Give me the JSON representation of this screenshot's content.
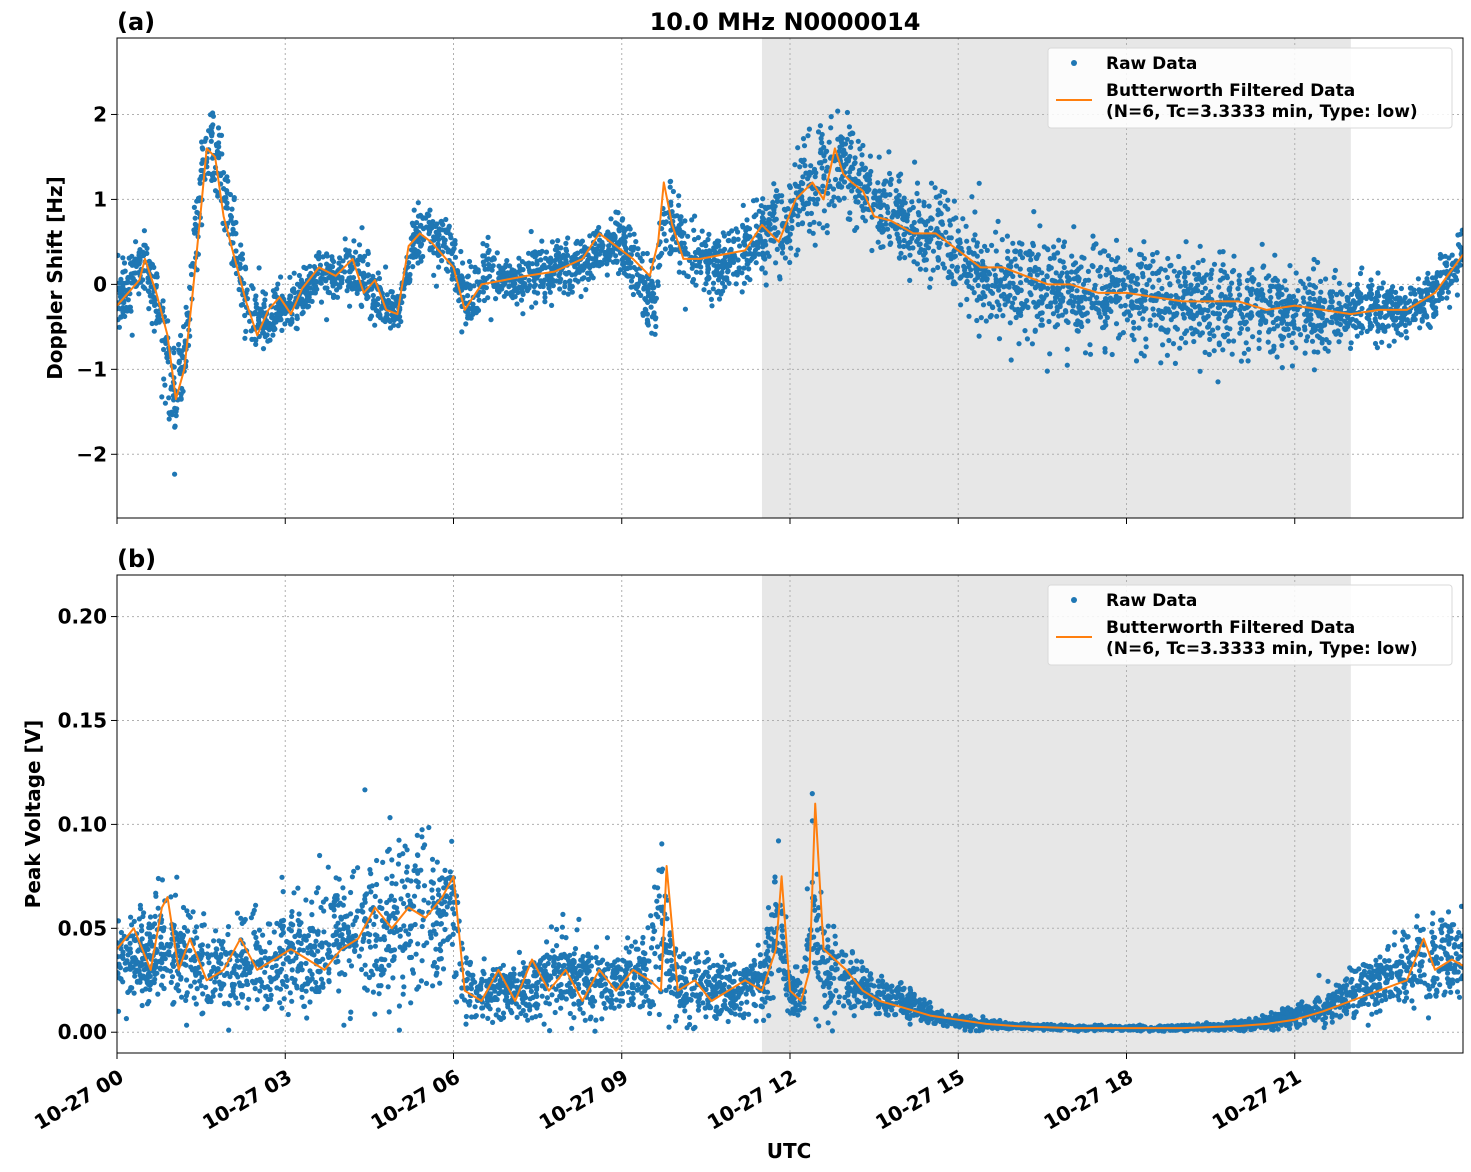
{
  "chart_data": [
    {
      "type": "scatter",
      "panel_label": "(a)",
      "title": "10.0 MHz N0000014",
      "ylabel": "Doppler Shift [Hz]",
      "xlabel": "",
      "xlim": [
        0,
        24
      ],
      "ylim": [
        -2.75,
        2.9
      ],
      "yticks": [
        -2,
        -1,
        0,
        1,
        2
      ],
      "ytick_labels": [
        "−2",
        "−1",
        "0",
        "1",
        "2"
      ],
      "xticks": [
        0,
        3,
        6,
        9,
        12,
        15,
        18,
        21
      ],
      "grid": true,
      "shaded_region": [
        11.5,
        22.0
      ],
      "legend": {
        "placement": "top-right",
        "entries": [
          "Raw Data",
          "Butterworth Filtered Data",
          "(N=6, Tc=3.3333 min, Type: low)"
        ]
      },
      "series": [
        {
          "name": "Raw Data",
          "style": "points",
          "color": "#1f77b4",
          "x": [
            0.0,
            0.5,
            0.7,
            0.9,
            1.05,
            1.3,
            1.5,
            1.75,
            2.0,
            2.3,
            2.6,
            2.9,
            3.2,
            3.6,
            4.0,
            4.3,
            4.6,
            5.0,
            5.3,
            5.6,
            5.9,
            6.2,
            6.6,
            7.0,
            7.5,
            8.0,
            8.5,
            9.0,
            9.35,
            9.6,
            9.8,
            10.2,
            10.6,
            11.0,
            11.5,
            11.9,
            12.3,
            12.6,
            12.9,
            13.2,
            13.6,
            14.0,
            14.5,
            15.0,
            15.5,
            16.0,
            16.5,
            17.0,
            17.5,
            18.0,
            18.5,
            19.0,
            19.5,
            20.0,
            20.5,
            21.0,
            21.5,
            22.0,
            22.5,
            23.0,
            23.5,
            24.0
          ],
          "y": [
            -0.2,
            0.3,
            -0.2,
            -0.9,
            -1.4,
            -0.3,
            1.2,
            1.7,
            0.8,
            -0.2,
            -0.5,
            -0.3,
            -0.2,
            0.1,
            0.1,
            0.25,
            -0.2,
            -0.3,
            0.5,
            0.6,
            0.4,
            -0.2,
            0.1,
            0.0,
            0.1,
            0.2,
            0.3,
            0.5,
            0.0,
            -0.2,
            0.8,
            0.3,
            0.2,
            0.3,
            0.6,
            0.7,
            1.1,
            1.3,
            1.4,
            1.2,
            0.9,
            0.7,
            0.6,
            0.4,
            0.1,
            0.0,
            0.0,
            -0.1,
            -0.1,
            -0.15,
            -0.2,
            -0.2,
            -0.25,
            -0.25,
            -0.3,
            -0.3,
            -0.3,
            -0.35,
            -0.3,
            -0.3,
            -0.1,
            0.3
          ],
          "spread": [
            0.35,
            0.35,
            0.35,
            0.5,
            0.6,
            0.45,
            0.55,
            0.55,
            0.4,
            0.45,
            0.35,
            0.3,
            0.3,
            0.3,
            0.3,
            0.3,
            0.3,
            0.3,
            0.3,
            0.3,
            0.3,
            0.35,
            0.35,
            0.3,
            0.3,
            0.3,
            0.3,
            0.3,
            0.35,
            0.4,
            0.45,
            0.4,
            0.35,
            0.35,
            0.4,
            0.45,
            0.5,
            0.55,
            0.55,
            0.5,
            0.45,
            0.4,
            0.4,
            0.45,
            0.5,
            0.55,
            0.55,
            0.55,
            0.55,
            0.55,
            0.55,
            0.55,
            0.55,
            0.5,
            0.5,
            0.45,
            0.4,
            0.35,
            0.3,
            0.3,
            0.3,
            0.3
          ]
        },
        {
          "name": "Butterworth Filtered Data",
          "style": "line",
          "color": "#ff7f0e",
          "x": [
            0.0,
            0.4,
            0.5,
            0.7,
            0.9,
            1.05,
            1.2,
            1.35,
            1.5,
            1.6,
            1.75,
            1.9,
            2.1,
            2.3,
            2.5,
            2.7,
            2.9,
            3.1,
            3.3,
            3.6,
            3.9,
            4.2,
            4.4,
            4.6,
            4.8,
            5.0,
            5.2,
            5.4,
            5.6,
            5.8,
            6.0,
            6.2,
            6.5,
            6.9,
            7.3,
            7.8,
            8.3,
            8.6,
            8.9,
            9.2,
            9.5,
            9.65,
            9.75,
            9.9,
            10.1,
            10.4,
            10.8,
            11.2,
            11.5,
            11.8,
            12.1,
            12.4,
            12.6,
            12.8,
            12.95,
            13.1,
            13.3,
            13.5,
            13.8,
            14.2,
            14.6,
            15.0,
            15.4,
            15.8,
            16.2,
            16.6,
            17.0,
            17.5,
            18.0,
            18.5,
            19.0,
            19.5,
            20.0,
            20.5,
            21.0,
            21.5,
            22.0,
            22.5,
            23.0,
            23.5,
            24.0
          ],
          "y": [
            -0.25,
            0.05,
            0.3,
            -0.1,
            -0.6,
            -1.35,
            -1.0,
            -0.1,
            0.9,
            1.6,
            1.5,
            0.8,
            0.3,
            -0.2,
            -0.6,
            -0.3,
            -0.15,
            -0.35,
            -0.05,
            0.2,
            0.1,
            0.3,
            -0.1,
            0.05,
            -0.3,
            -0.35,
            0.45,
            0.6,
            0.5,
            0.35,
            0.2,
            -0.3,
            0.0,
            0.05,
            0.1,
            0.15,
            0.3,
            0.6,
            0.45,
            0.3,
            0.1,
            0.5,
            1.2,
            0.7,
            0.3,
            0.3,
            0.35,
            0.4,
            0.7,
            0.5,
            1.0,
            1.2,
            1.0,
            1.6,
            1.3,
            1.2,
            1.1,
            0.8,
            0.75,
            0.6,
            0.6,
            0.4,
            0.2,
            0.2,
            0.1,
            0.0,
            0.0,
            -0.1,
            -0.1,
            -0.15,
            -0.2,
            -0.2,
            -0.2,
            -0.3,
            -0.25,
            -0.3,
            -0.35,
            -0.3,
            -0.3,
            -0.1,
            0.35
          ]
        }
      ]
    },
    {
      "type": "scatter",
      "panel_label": "(b)",
      "title": "",
      "ylabel": "Peak Voltage [V]",
      "xlabel": "UTC",
      "xlim": [
        0,
        24
      ],
      "ylim": [
        -0.01,
        0.22
      ],
      "yticks": [
        0.0,
        0.05,
        0.1,
        0.15,
        0.2
      ],
      "ytick_labels": [
        "0.00",
        "0.05",
        "0.10",
        "0.15",
        "0.20"
      ],
      "xticks": [
        0,
        3,
        6,
        9,
        12,
        15,
        18,
        21
      ],
      "xtick_labels": [
        "10-27 00",
        "10-27 03",
        "10-27 06",
        "10-27 09",
        "10-27 12",
        "10-27 15",
        "10-27 18",
        "10-27 21"
      ],
      "grid": true,
      "shaded_region": [
        11.5,
        22.0
      ],
      "legend": {
        "placement": "top-right",
        "entries": [
          "Raw Data",
          "Butterworth Filtered Data",
          "(N=6, Tc=3.3333 min, Type: low)"
        ]
      },
      "series": [
        {
          "name": "Raw Data",
          "style": "points",
          "color": "#1f77b4",
          "x": [
            0.0,
            0.5,
            1.0,
            1.5,
            2.0,
            2.5,
            3.0,
            3.5,
            4.0,
            4.5,
            5.0,
            5.5,
            6.0,
            6.2,
            6.6,
            7.0,
            7.5,
            8.0,
            8.5,
            9.0,
            9.5,
            9.7,
            10.0,
            10.5,
            11.0,
            11.5,
            11.8,
            12.0,
            12.2,
            12.4,
            12.6,
            13.0,
            13.5,
            14.0,
            14.5,
            15.0,
            16.0,
            17.0,
            18.0,
            19.0,
            20.0,
            20.5,
            21.0,
            21.5,
            22.0,
            22.5,
            23.0,
            23.5,
            24.0
          ],
          "y": [
            0.035,
            0.035,
            0.04,
            0.03,
            0.028,
            0.035,
            0.035,
            0.04,
            0.045,
            0.05,
            0.055,
            0.06,
            0.06,
            0.02,
            0.02,
            0.018,
            0.025,
            0.03,
            0.02,
            0.025,
            0.03,
            0.05,
            0.02,
            0.02,
            0.02,
            0.025,
            0.05,
            0.02,
            0.015,
            0.06,
            0.03,
            0.025,
            0.018,
            0.015,
            0.008,
            0.005,
            0.003,
            0.002,
            0.002,
            0.002,
            0.003,
            0.005,
            0.008,
            0.012,
            0.018,
            0.025,
            0.03,
            0.035,
            0.04
          ],
          "spread": [
            0.02,
            0.02,
            0.025,
            0.02,
            0.02,
            0.02,
            0.022,
            0.028,
            0.03,
            0.035,
            0.035,
            0.035,
            0.03,
            0.015,
            0.012,
            0.012,
            0.015,
            0.018,
            0.015,
            0.015,
            0.018,
            0.03,
            0.015,
            0.015,
            0.012,
            0.015,
            0.03,
            0.012,
            0.01,
            0.04,
            0.02,
            0.015,
            0.01,
            0.008,
            0.004,
            0.003,
            0.001,
            0.001,
            0.001,
            0.001,
            0.002,
            0.003,
            0.005,
            0.007,
            0.01,
            0.013,
            0.016,
            0.018,
            0.02
          ]
        },
        {
          "name": "Butterworth Filtered Data",
          "style": "line",
          "color": "#ff7f0e",
          "x": [
            0.0,
            0.3,
            0.6,
            0.8,
            0.9,
            1.1,
            1.3,
            1.6,
            1.9,
            2.2,
            2.5,
            2.8,
            3.1,
            3.4,
            3.7,
            4.0,
            4.3,
            4.6,
            4.9,
            5.2,
            5.5,
            5.8,
            6.0,
            6.2,
            6.5,
            6.8,
            7.1,
            7.4,
            7.7,
            8.0,
            8.3,
            8.6,
            8.9,
            9.2,
            9.5,
            9.7,
            9.8,
            10.0,
            10.3,
            10.6,
            10.9,
            11.2,
            11.5,
            11.75,
            11.85,
            12.0,
            12.2,
            12.35,
            12.45,
            12.6,
            12.8,
            13.0,
            13.3,
            13.6,
            14.0,
            14.5,
            15.0,
            15.5,
            16.0,
            17.0,
            18.0,
            19.0,
            20.0,
            20.5,
            21.0,
            21.5,
            22.0,
            22.5,
            23.0,
            23.3,
            23.5,
            23.8,
            24.0
          ],
          "y": [
            0.04,
            0.05,
            0.03,
            0.06,
            0.065,
            0.03,
            0.045,
            0.025,
            0.03,
            0.045,
            0.03,
            0.035,
            0.04,
            0.035,
            0.03,
            0.04,
            0.045,
            0.06,
            0.05,
            0.06,
            0.055,
            0.065,
            0.075,
            0.02,
            0.015,
            0.03,
            0.015,
            0.035,
            0.02,
            0.03,
            0.015,
            0.03,
            0.02,
            0.03,
            0.025,
            0.02,
            0.08,
            0.02,
            0.025,
            0.015,
            0.02,
            0.025,
            0.02,
            0.04,
            0.075,
            0.02,
            0.015,
            0.03,
            0.11,
            0.04,
            0.035,
            0.03,
            0.02,
            0.015,
            0.012,
            0.008,
            0.006,
            0.004,
            0.003,
            0.002,
            0.002,
            0.002,
            0.003,
            0.004,
            0.006,
            0.01,
            0.015,
            0.02,
            0.025,
            0.045,
            0.03,
            0.035,
            0.032
          ]
        }
      ]
    }
  ]
}
